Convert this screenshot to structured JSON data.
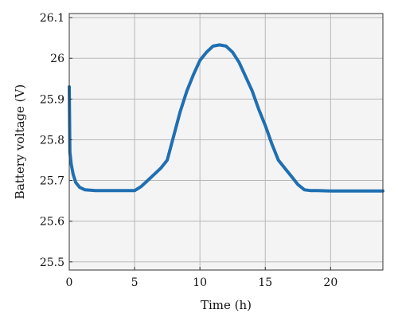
{
  "chart_data": {
    "type": "line",
    "xlabel": "Time (h)",
    "ylabel": "Battery voltage (V)",
    "xlim": [
      0,
      24
    ],
    "ylim": [
      25.48,
      26.11
    ],
    "x_ticks": [
      0,
      5,
      10,
      15,
      20
    ],
    "y_ticks": [
      25.5,
      25.6,
      25.7,
      25.8,
      25.9,
      26,
      26.1
    ],
    "y_tick_labels": [
      "25.5",
      "25.6",
      "25.7",
      "25.8",
      "25.9",
      "26",
      "26.1"
    ],
    "grid": true,
    "plot_background": "#f4f4f4",
    "series_color": "#1f6fb2",
    "series": [
      {
        "x": [
          0,
          0.05,
          0.15,
          0.3,
          0.5,
          0.8,
          1.2,
          2,
          3,
          4,
          5,
          5.5,
          6,
          6.5,
          7,
          7.5,
          8,
          8.5,
          9,
          9.5,
          10,
          10.5,
          11,
          11.5,
          12,
          12.5,
          13,
          13.5,
          14,
          14.5,
          15,
          15.5,
          16,
          16.5,
          17,
          17.5,
          18,
          18.5,
          19,
          20,
          22,
          24
        ],
        "y": [
          25.93,
          25.77,
          25.74,
          25.715,
          25.695,
          25.683,
          25.677,
          25.675,
          25.675,
          25.675,
          25.675,
          25.685,
          25.7,
          25.715,
          25.73,
          25.75,
          25.81,
          25.87,
          25.92,
          25.96,
          25.995,
          26.015,
          26.03,
          26.033,
          26.03,
          26.015,
          25.99,
          25.955,
          25.92,
          25.875,
          25.835,
          25.79,
          25.75,
          25.73,
          25.71,
          25.69,
          25.677,
          25.675,
          25.675,
          25.674,
          25.674,
          25.674
        ]
      }
    ]
  }
}
